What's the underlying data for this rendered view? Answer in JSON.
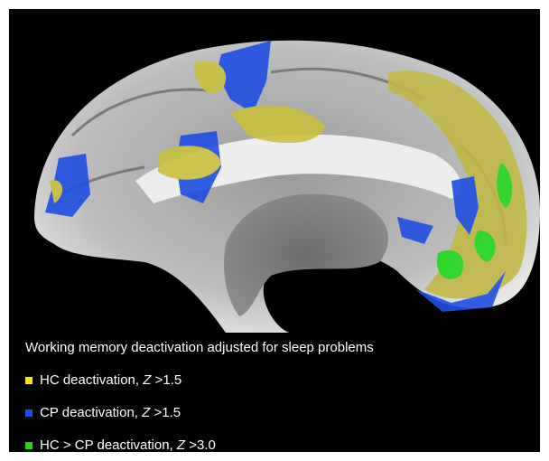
{
  "caption": "Working memory deactivation adjusted for sleep problems",
  "legend": [
    {
      "text": "HC deactivation, ",
      "italic": "Z",
      "suffix": " >1.5",
      "color": "#f2ea00"
    },
    {
      "text": "CP deactivation, ",
      "italic": "Z",
      "suffix": " >1.5",
      "color": "#1f4fe0"
    },
    {
      "text": "HC > CP deactivation, ",
      "italic": "Z",
      "suffix": " >3.0",
      "color": "#22d81c"
    }
  ]
}
